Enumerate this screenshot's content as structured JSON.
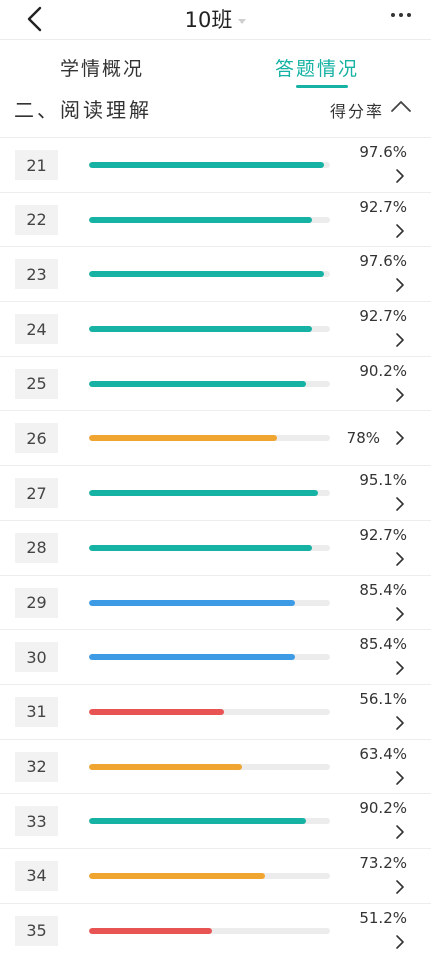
{
  "header": {
    "title": "10班"
  },
  "tabs": [
    {
      "label": "学情概况",
      "active": false
    },
    {
      "label": "答题情况",
      "active": true
    }
  ],
  "section": {
    "title": "二、阅读理解",
    "sort_label": "得分率"
  },
  "colors": {
    "accent": "#16b2a4",
    "teal": "#16b2a4",
    "blue": "#3d9be6",
    "orange": "#f0a531",
    "red": "#e85454"
  },
  "questions": [
    {
      "number": "21",
      "rate": "97.6%",
      "value": 97.6,
      "color": "teal"
    },
    {
      "number": "22",
      "rate": "92.7%",
      "value": 92.7,
      "color": "teal"
    },
    {
      "number": "23",
      "rate": "97.6%",
      "value": 97.6,
      "color": "teal"
    },
    {
      "number": "24",
      "rate": "92.7%",
      "value": 92.7,
      "color": "teal"
    },
    {
      "number": "25",
      "rate": "90.2%",
      "value": 90.2,
      "color": "teal"
    },
    {
      "number": "26",
      "rate": "78%",
      "value": 78,
      "color": "orange"
    },
    {
      "number": "27",
      "rate": "95.1%",
      "value": 95.1,
      "color": "teal"
    },
    {
      "number": "28",
      "rate": "92.7%",
      "value": 92.7,
      "color": "teal"
    },
    {
      "number": "29",
      "rate": "85.4%",
      "value": 85.4,
      "color": "blue"
    },
    {
      "number": "30",
      "rate": "85.4%",
      "value": 85.4,
      "color": "blue"
    },
    {
      "number": "31",
      "rate": "56.1%",
      "value": 56.1,
      "color": "red"
    },
    {
      "number": "32",
      "rate": "63.4%",
      "value": 63.4,
      "color": "orange"
    },
    {
      "number": "33",
      "rate": "90.2%",
      "value": 90.2,
      "color": "teal"
    },
    {
      "number": "34",
      "rate": "73.2%",
      "value": 73.2,
      "color": "orange"
    },
    {
      "number": "35",
      "rate": "51.2%",
      "value": 51.2,
      "color": "red"
    }
  ]
}
